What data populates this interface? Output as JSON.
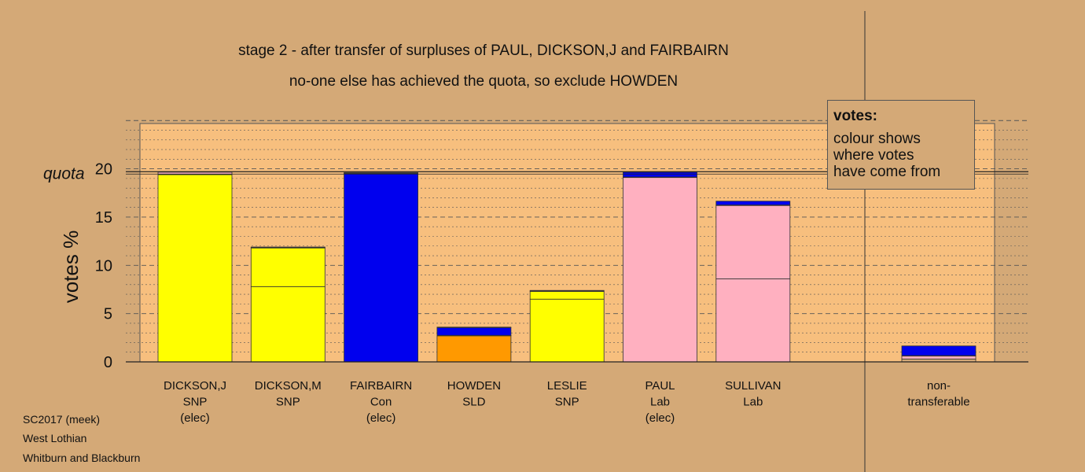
{
  "title": "stage 2 - after transfer of surpluses of PAUL, DICKSON,J and FAIRBAIRN",
  "subtitle": "no-one else has achieved the quota, so exclude HOWDEN",
  "legend": {
    "heading": "votes:",
    "lines": [
      "colour shows",
      "where votes",
      "have come from"
    ]
  },
  "footer": {
    "line1": "SC2017 (meek)",
    "line2": "West Lothian",
    "line3": "Whitburn and Blackburn"
  },
  "colors": {
    "background": "#d4a977",
    "plot_bg": "#f7bf7e",
    "SNP": "#ffff00",
    "Con": "#0000ee",
    "SLD": "#ff9900",
    "Lab": "#ffb0c0",
    "nontransferable": "#d4a977"
  },
  "chart_data": {
    "type": "bar",
    "stacked": true,
    "ylabel": "votes %",
    "ylim": [
      0,
      25
    ],
    "yticks": [
      0,
      5,
      10,
      15,
      20
    ],
    "quota": 19.7,
    "quota_label": "quota",
    "grid": "dotted every 1, dashed every 5",
    "legend_placement": "top-right",
    "candidates": [
      {
        "name": "DICKSON,J",
        "party": "SNP",
        "status": "(elec)",
        "segments": [
          {
            "from": "SNP",
            "value": 19.4
          },
          {
            "from": "Con",
            "value": 0.05
          },
          {
            "from": "Lab",
            "value": 0.2
          }
        ]
      },
      {
        "name": "DICKSON,M",
        "party": "SNP",
        "status": "",
        "segments": [
          {
            "from": "SNP",
            "value": 7.8
          },
          {
            "from": "SNP",
            "value": 4.0
          },
          {
            "from": "Con",
            "value": 0.05
          },
          {
            "from": "Lab",
            "value": 0.05
          }
        ]
      },
      {
        "name": "FAIRBAIRN",
        "party": "Con",
        "status": "(elec)",
        "segments": [
          {
            "from": "Con",
            "value": 19.5
          },
          {
            "from": "SNP",
            "value": 0.05
          },
          {
            "from": "Lab",
            "value": 0.05
          }
        ]
      },
      {
        "name": "HOWDEN",
        "party": "SLD",
        "status": "",
        "segments": [
          {
            "from": "SLD",
            "value": 2.7
          },
          {
            "from": "SNP",
            "value": 0.05
          },
          {
            "from": "Con",
            "value": 0.8
          },
          {
            "from": "Lab",
            "value": 0.05
          }
        ]
      },
      {
        "name": "LESLIE",
        "party": "SNP",
        "status": "",
        "segments": [
          {
            "from": "SNP",
            "value": 6.5
          },
          {
            "from": "SNP",
            "value": 0.8
          },
          {
            "from": "Con",
            "value": 0.05
          },
          {
            "from": "Lab",
            "value": 0.05
          }
        ]
      },
      {
        "name": "PAUL",
        "party": "Lab",
        "status": "(elec)",
        "segments": [
          {
            "from": "Lab",
            "value": 19.1
          },
          {
            "from": "SNP",
            "value": 0.05
          },
          {
            "from": "Con",
            "value": 0.5
          }
        ]
      },
      {
        "name": "SULLIVAN",
        "party": "Lab",
        "status": "",
        "segments": [
          {
            "from": "Lab",
            "value": 8.6
          },
          {
            "from": "Lab",
            "value": 7.6
          },
          {
            "from": "SNP",
            "value": 0.05
          },
          {
            "from": "Con",
            "value": 0.4
          }
        ]
      }
    ],
    "nontransferable": {
      "label_line1": "non-",
      "label_line2": "transferable",
      "segments": [
        {
          "from": "nontransferable",
          "value": 0.3
        },
        {
          "from": "Lab",
          "value": 0.3
        },
        {
          "from": "SNP",
          "value": 0.05
        },
        {
          "from": "Con",
          "value": 1.0
        }
      ]
    }
  }
}
